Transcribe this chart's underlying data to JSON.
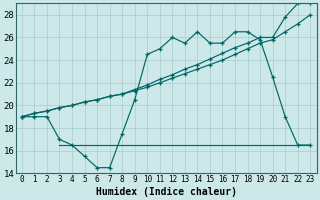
{
  "xlabel": "Humidex (Indice chaleur)",
  "bg_color": "#cce8e8",
  "grid_color": "#aacccc",
  "line_color": "#006666",
  "xlim": [
    -0.5,
    23.5
  ],
  "ylim": [
    14,
    29
  ],
  "xticks": [
    0,
    1,
    2,
    3,
    4,
    5,
    6,
    7,
    8,
    9,
    10,
    11,
    12,
    13,
    14,
    15,
    16,
    17,
    18,
    19,
    20,
    21,
    22,
    23
  ],
  "yticks": [
    14,
    16,
    18,
    20,
    22,
    24,
    26,
    28
  ],
  "series1_x": [
    0,
    1,
    2,
    3,
    4,
    5,
    6,
    7,
    8,
    9,
    10,
    11,
    12,
    13,
    14,
    15,
    16,
    17,
    18,
    19,
    20,
    21,
    22,
    23
  ],
  "series1_y": [
    19,
    19,
    19,
    17,
    16.5,
    15.5,
    14.5,
    14.5,
    17.5,
    20.5,
    24.5,
    25.0,
    26.0,
    25.5,
    26.5,
    25.5,
    25.5,
    26.5,
    26.5,
    25.8,
    22.5,
    19.0,
    16.5,
    16.5
  ],
  "series2_x": [
    0,
    1,
    2,
    3,
    4,
    5,
    6,
    7,
    8,
    9,
    10,
    11,
    12,
    13,
    14,
    15,
    16,
    17,
    18,
    19,
    20,
    21,
    22,
    23
  ],
  "series2_y": [
    19,
    19.3,
    19.5,
    19.8,
    20.0,
    20.3,
    20.5,
    20.8,
    21.0,
    21.3,
    21.6,
    22.0,
    22.4,
    22.8,
    23.2,
    23.6,
    24.0,
    24.5,
    25.0,
    25.5,
    25.8,
    26.5,
    27.2,
    28.0
  ],
  "series3_x": [
    0,
    1,
    2,
    3,
    4,
    5,
    6,
    7,
    8,
    9,
    10,
    11,
    12,
    13,
    14,
    15,
    16,
    17,
    18,
    19,
    20,
    21,
    22,
    23
  ],
  "series3_y": [
    19,
    19.3,
    19.5,
    19.8,
    20.0,
    20.3,
    20.5,
    20.8,
    21.0,
    21.4,
    21.8,
    22.3,
    22.7,
    23.2,
    23.6,
    24.1,
    24.6,
    25.1,
    25.5,
    26.0,
    26.0,
    27.8,
    29.0,
    29.0
  ],
  "series4_x": [
    3,
    10,
    23
  ],
  "series4_y": [
    16.5,
    16.5,
    16.5
  ]
}
